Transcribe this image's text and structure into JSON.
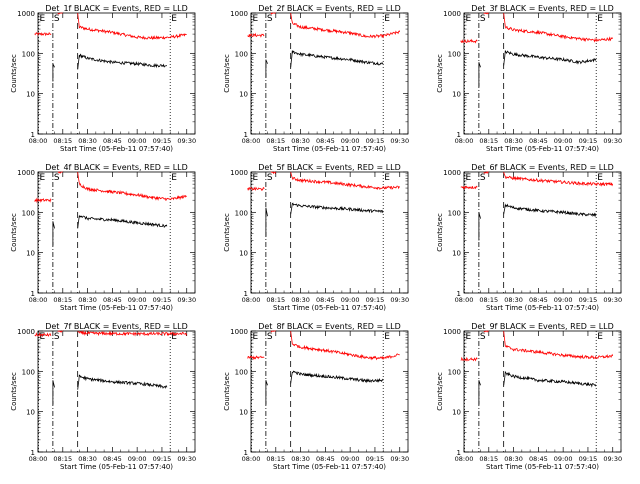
{
  "shared": {
    "ylabel": "Counts/sec",
    "xlabel": "Start Time (05-Feb-11 07:57:40)",
    "xticks": [
      "08:00",
      "08:15",
      "08:30",
      "08:45",
      "09:00",
      "09:15",
      "09:30"
    ],
    "yticks": [
      "1",
      "10",
      "100",
      "1000"
    ],
    "markers": [
      {
        "label": "E",
        "time": "07:58",
        "style": "dotted"
      },
      {
        "label": "S",
        "time": "08:09",
        "style": "dash-dot"
      },
      {
        "label": "",
        "time": "08:24",
        "style": "dashed"
      },
      {
        "label": "E",
        "time": "09:20",
        "style": "dotted"
      }
    ],
    "colors": {
      "events": "#000000",
      "lld": "#ff0000",
      "axis": "#000000"
    }
  },
  "chart_data": [
    {
      "type": "line",
      "title": "Det_1f BLACK = Events, RED = LLD",
      "xlim": [
        "08:00",
        "09:35"
      ],
      "ylim": [
        1,
        1000
      ],
      "yscale": "log",
      "series": [
        {
          "color": "#ff0000",
          "segments": [
            {
              "x": [
                "07:58",
                "08:05",
                "08:08"
              ],
              "y": [
                300,
                300,
                300
              ]
            },
            {
              "x": [
                "08:12",
                "08:15"
              ],
              "y": [
                1000,
                1000
              ]
            },
            {
              "x": [
                "08:24",
                "08:25",
                "08:30",
                "08:45",
                "09:00",
                "09:10",
                "09:20",
                "09:30"
              ],
              "y": [
                1000,
                450,
                400,
                330,
                250,
                240,
                250,
                290
              ]
            }
          ]
        },
        {
          "color": "#000000",
          "segments": [
            {
              "x": [
                "08:09",
                "08:09",
                "08:10"
              ],
              "y": [
                20,
                55,
                45
              ]
            },
            {
              "x": [
                "08:24",
                "08:25",
                "08:30",
                "08:45",
                "09:00",
                "09:10",
                "09:18"
              ],
              "y": [
                40,
                90,
                75,
                60,
                55,
                50,
                50
              ]
            }
          ]
        }
      ]
    },
    {
      "type": "line",
      "title": "Det_2f BLACK = Events, RED = LLD",
      "xlim": [
        "08:00",
        "09:35"
      ],
      "ylim": [
        1,
        1000
      ],
      "yscale": "log",
      "series": [
        {
          "color": "#ff0000",
          "segments": [
            {
              "x": [
                "07:58",
                "08:05",
                "08:08"
              ],
              "y": [
                280,
                280,
                280
              ]
            },
            {
              "x": [
                "08:12",
                "08:15"
              ],
              "y": [
                1000,
                1000
              ]
            },
            {
              "x": [
                "08:24",
                "08:25",
                "08:30",
                "08:45",
                "09:00",
                "09:10",
                "09:20",
                "09:30"
              ],
              "y": [
                1000,
                550,
                450,
                380,
                320,
                260,
                270,
                340
              ]
            }
          ]
        },
        {
          "color": "#000000",
          "segments": [
            {
              "x": [
                "08:09",
                "08:09",
                "08:10"
              ],
              "y": [
                25,
                70,
                55
              ]
            },
            {
              "x": [
                "08:24",
                "08:25",
                "08:30",
                "08:45",
                "09:00",
                "09:10",
                "09:20"
              ],
              "y": [
                45,
                110,
                95,
                80,
                70,
                60,
                55
              ]
            }
          ]
        }
      ]
    },
    {
      "type": "line",
      "title": "Det_3f BLACK = Events, RED = LLD",
      "xlim": [
        "08:00",
        "09:35"
      ],
      "ylim": [
        1,
        1000
      ],
      "yscale": "log",
      "series": [
        {
          "color": "#ff0000",
          "segments": [
            {
              "x": [
                "07:58",
                "08:05",
                "08:08"
              ],
              "y": [
                200,
                200,
                200
              ]
            },
            {
              "x": [
                "08:12",
                "08:15"
              ],
              "y": [
                1000,
                1000
              ]
            },
            {
              "x": [
                "08:24",
                "08:25",
                "08:30",
                "08:45",
                "09:00",
                "09:10",
                "09:20",
                "09:30"
              ],
              "y": [
                1000,
                450,
                380,
                330,
                260,
                230,
                210,
                230
              ]
            }
          ]
        },
        {
          "color": "#000000",
          "segments": [
            {
              "x": [
                "08:09",
                "08:09",
                "08:10"
              ],
              "y": [
                15,
                60,
                45
              ]
            },
            {
              "x": [
                "08:24",
                "08:25",
                "08:30",
                "08:45",
                "09:00",
                "09:10",
                "09:20"
              ],
              "y": [
                50,
                110,
                95,
                80,
                70,
                60,
                70
              ]
            }
          ]
        }
      ]
    },
    {
      "type": "line",
      "title": "Det_4f BLACK = Events, RED = LLD",
      "xlim": [
        "08:00",
        "09:35"
      ],
      "ylim": [
        1,
        1000
      ],
      "yscale": "log",
      "series": [
        {
          "color": "#ff0000",
          "segments": [
            {
              "x": [
                "07:58",
                "08:05",
                "08:08"
              ],
              "y": [
                200,
                200,
                200
              ]
            },
            {
              "x": [
                "08:12",
                "08:15"
              ],
              "y": [
                1000,
                1000
              ]
            },
            {
              "x": [
                "08:24",
                "08:25",
                "08:30",
                "08:45",
                "09:00",
                "09:10",
                "09:20",
                "09:30"
              ],
              "y": [
                1000,
                500,
                380,
                320,
                270,
                230,
                210,
                250
              ]
            }
          ]
        },
        {
          "color": "#000000",
          "segments": [
            {
              "x": [
                "08:09",
                "08:09",
                "08:10"
              ],
              "y": [
                15,
                60,
                40
              ]
            },
            {
              "x": [
                "08:24",
                "08:25",
                "08:30",
                "08:45",
                "09:00",
                "09:10",
                "09:18"
              ],
              "y": [
                40,
                85,
                70,
                65,
                55,
                50,
                45
              ]
            }
          ]
        }
      ]
    },
    {
      "type": "line",
      "title": "Det_5f BLACK = Events, RED = LLD",
      "xlim": [
        "08:00",
        "09:35"
      ],
      "ylim": [
        1,
        1000
      ],
      "yscale": "log",
      "series": [
        {
          "color": "#ff0000",
          "segments": [
            {
              "x": [
                "07:58",
                "08:05",
                "08:08"
              ],
              "y": [
                380,
                380,
                380
              ]
            },
            {
              "x": [
                "08:12",
                "08:15"
              ],
              "y": [
                1000,
                1000
              ]
            },
            {
              "x": [
                "08:24",
                "08:25",
                "08:30",
                "08:45",
                "09:00",
                "09:10",
                "09:20",
                "09:30"
              ],
              "y": [
                1000,
                700,
                620,
                560,
                480,
                430,
                400,
                420
              ]
            }
          ]
        },
        {
          "color": "#000000",
          "segments": [
            {
              "x": [
                "08:09",
                "08:09",
                "08:10"
              ],
              "y": [
                25,
                130,
                80
              ]
            },
            {
              "x": [
                "08:24",
                "08:25",
                "08:30",
                "08:45",
                "09:00",
                "09:10",
                "09:20"
              ],
              "y": [
                90,
                160,
                145,
                130,
                120,
                110,
                105
              ]
            }
          ]
        }
      ]
    },
    {
      "type": "line",
      "title": "Det_6f BLACK = Events, RED = LLD",
      "xlim": [
        "08:00",
        "09:35"
      ],
      "ylim": [
        1,
        1000
      ],
      "yscale": "log",
      "series": [
        {
          "color": "#ff0000",
          "segments": [
            {
              "x": [
                "07:58",
                "08:05",
                "08:08"
              ],
              "y": [
                420,
                420,
                420
              ]
            },
            {
              "x": [
                "08:12",
                "08:15"
              ],
              "y": [
                1000,
                1000
              ]
            },
            {
              "x": [
                "08:24",
                "08:25",
                "08:30",
                "08:45",
                "09:00",
                "09:10",
                "09:20",
                "09:30"
              ],
              "y": [
                1000,
                750,
                700,
                620,
                560,
                520,
                500,
                500
              ]
            }
          ]
        },
        {
          "color": "#000000",
          "segments": [
            {
              "x": [
                "08:09",
                "08:09",
                "08:10"
              ],
              "y": [
                20,
                100,
                70
              ]
            },
            {
              "x": [
                "08:24",
                "08:25",
                "08:30",
                "08:45",
                "09:00",
                "09:10",
                "09:20"
              ],
              "y": [
                90,
                150,
                130,
                110,
                100,
                90,
                85
              ]
            }
          ]
        }
      ]
    },
    {
      "type": "line",
      "title": "Det_7f BLACK = Events, RED = LLD",
      "xlim": [
        "08:00",
        "09:35"
      ],
      "ylim": [
        1,
        1000
      ],
      "yscale": "log",
      "series": [
        {
          "color": "#ff0000",
          "segments": [
            {
              "x": [
                "07:58",
                "08:05",
                "08:08"
              ],
              "y": [
                800,
                800,
                800
              ]
            },
            {
              "x": [
                "08:12",
                "08:15"
              ],
              "y": [
                1000,
                1000
              ]
            },
            {
              "x": [
                "08:24",
                "08:25",
                "08:30",
                "08:45",
                "09:00",
                "09:10",
                "09:20",
                "09:30"
              ],
              "y": [
                1000,
                900,
                880,
                860,
                850,
                850,
                850,
                860
              ]
            }
          ]
        },
        {
          "color": "#000000",
          "segments": [
            {
              "x": [
                "08:09",
                "08:09",
                "08:10"
              ],
              "y": [
                15,
                60,
                40
              ]
            },
            {
              "x": [
                "08:24",
                "08:25",
                "08:30",
                "08:45",
                "09:00",
                "09:10",
                "09:18"
              ],
              "y": [
                35,
                75,
                65,
                55,
                50,
                45,
                40
              ]
            }
          ]
        }
      ]
    },
    {
      "type": "line",
      "title": "Det_8f BLACK = Events, RED = LLD",
      "xlim": [
        "08:00",
        "09:35"
      ],
      "ylim": [
        1,
        1000
      ],
      "yscale": "log",
      "series": [
        {
          "color": "#ff0000",
          "segments": [
            {
              "x": [
                "07:58",
                "08:05",
                "08:08"
              ],
              "y": [
                220,
                220,
                220
              ]
            },
            {
              "x": [
                "08:12",
                "08:15"
              ],
              "y": [
                1000,
                1000
              ]
            },
            {
              "x": [
                "08:24",
                "08:25",
                "08:30",
                "08:45",
                "09:00",
                "09:10",
                "09:20",
                "09:30"
              ],
              "y": [
                1000,
                480,
                400,
                330,
                260,
                220,
                210,
                260
              ]
            }
          ]
        },
        {
          "color": "#000000",
          "segments": [
            {
              "x": [
                "08:09",
                "08:09",
                "08:10"
              ],
              "y": [
                15,
                60,
                45
              ]
            },
            {
              "x": [
                "08:24",
                "08:25",
                "08:30",
                "08:45",
                "09:00",
                "09:10",
                "09:20"
              ],
              "y": [
                50,
                100,
                85,
                75,
                65,
                58,
                60
              ]
            }
          ]
        }
      ]
    },
    {
      "type": "line",
      "title": "Det_9f BLACK = Events, RED = LLD",
      "xlim": [
        "08:00",
        "09:35"
      ],
      "ylim": [
        1,
        1000
      ],
      "yscale": "log",
      "series": [
        {
          "color": "#ff0000",
          "segments": [
            {
              "x": [
                "07:58",
                "08:05",
                "08:08"
              ],
              "y": [
                200,
                200,
                200
              ]
            },
            {
              "x": [
                "08:12",
                "08:15"
              ],
              "y": [
                1000,
                1000
              ]
            },
            {
              "x": [
                "08:24",
                "08:25",
                "08:30",
                "08:45",
                "09:00",
                "09:10",
                "09:20",
                "09:30"
              ],
              "y": [
                1000,
                420,
                350,
                300,
                250,
                230,
                220,
                240
              ]
            }
          ]
        },
        {
          "color": "#000000",
          "segments": [
            {
              "x": [
                "08:09",
                "08:09",
                "08:10"
              ],
              "y": [
                15,
                60,
                45
              ]
            },
            {
              "x": [
                "08:24",
                "08:25",
                "08:30",
                "08:45",
                "09:00",
                "09:10",
                "09:20"
              ],
              "y": [
                45,
                90,
                75,
                60,
                55,
                50,
                45
              ]
            }
          ]
        }
      ]
    }
  ]
}
